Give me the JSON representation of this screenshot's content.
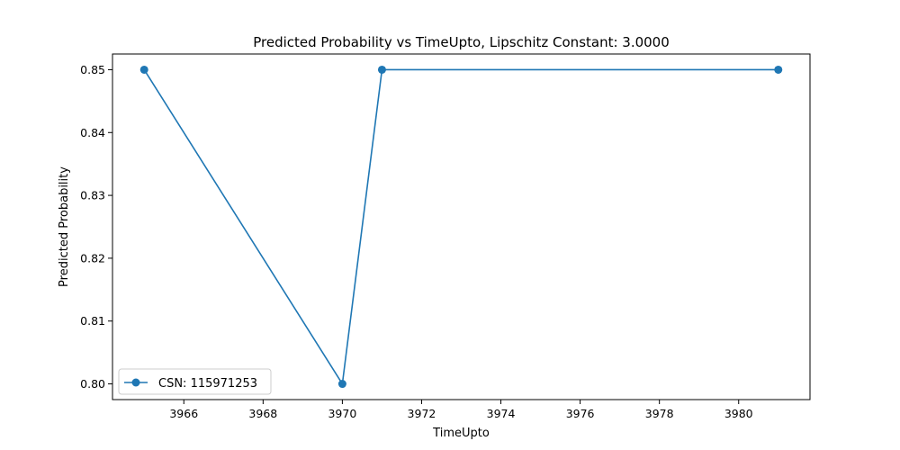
{
  "chart_data": {
    "type": "line",
    "title": "Predicted Probability vs TimeUpto, Lipschitz Constant: 3.0000",
    "xlabel": "TimeUpto",
    "ylabel": "Predicted Probability",
    "xlim": [
      3964.2,
      3981.8
    ],
    "ylim": [
      0.7975,
      0.8525
    ],
    "xticks": [
      3966,
      3968,
      3970,
      3972,
      3974,
      3976,
      3978,
      3980
    ],
    "yticks": [
      0.8,
      0.81,
      0.82,
      0.83,
      0.84,
      0.85
    ],
    "ytick_labels": [
      "0.80",
      "0.81",
      "0.82",
      "0.83",
      "0.84",
      "0.85"
    ],
    "grid": false,
    "legend_position": "lower-left",
    "series": [
      {
        "name": "CSN: 115971253",
        "color": "#1f77b4",
        "marker": "circle",
        "x": [
          3965,
          3970,
          3971,
          3981
        ],
        "y": [
          0.85,
          0.8,
          0.85,
          0.85
        ]
      }
    ]
  }
}
